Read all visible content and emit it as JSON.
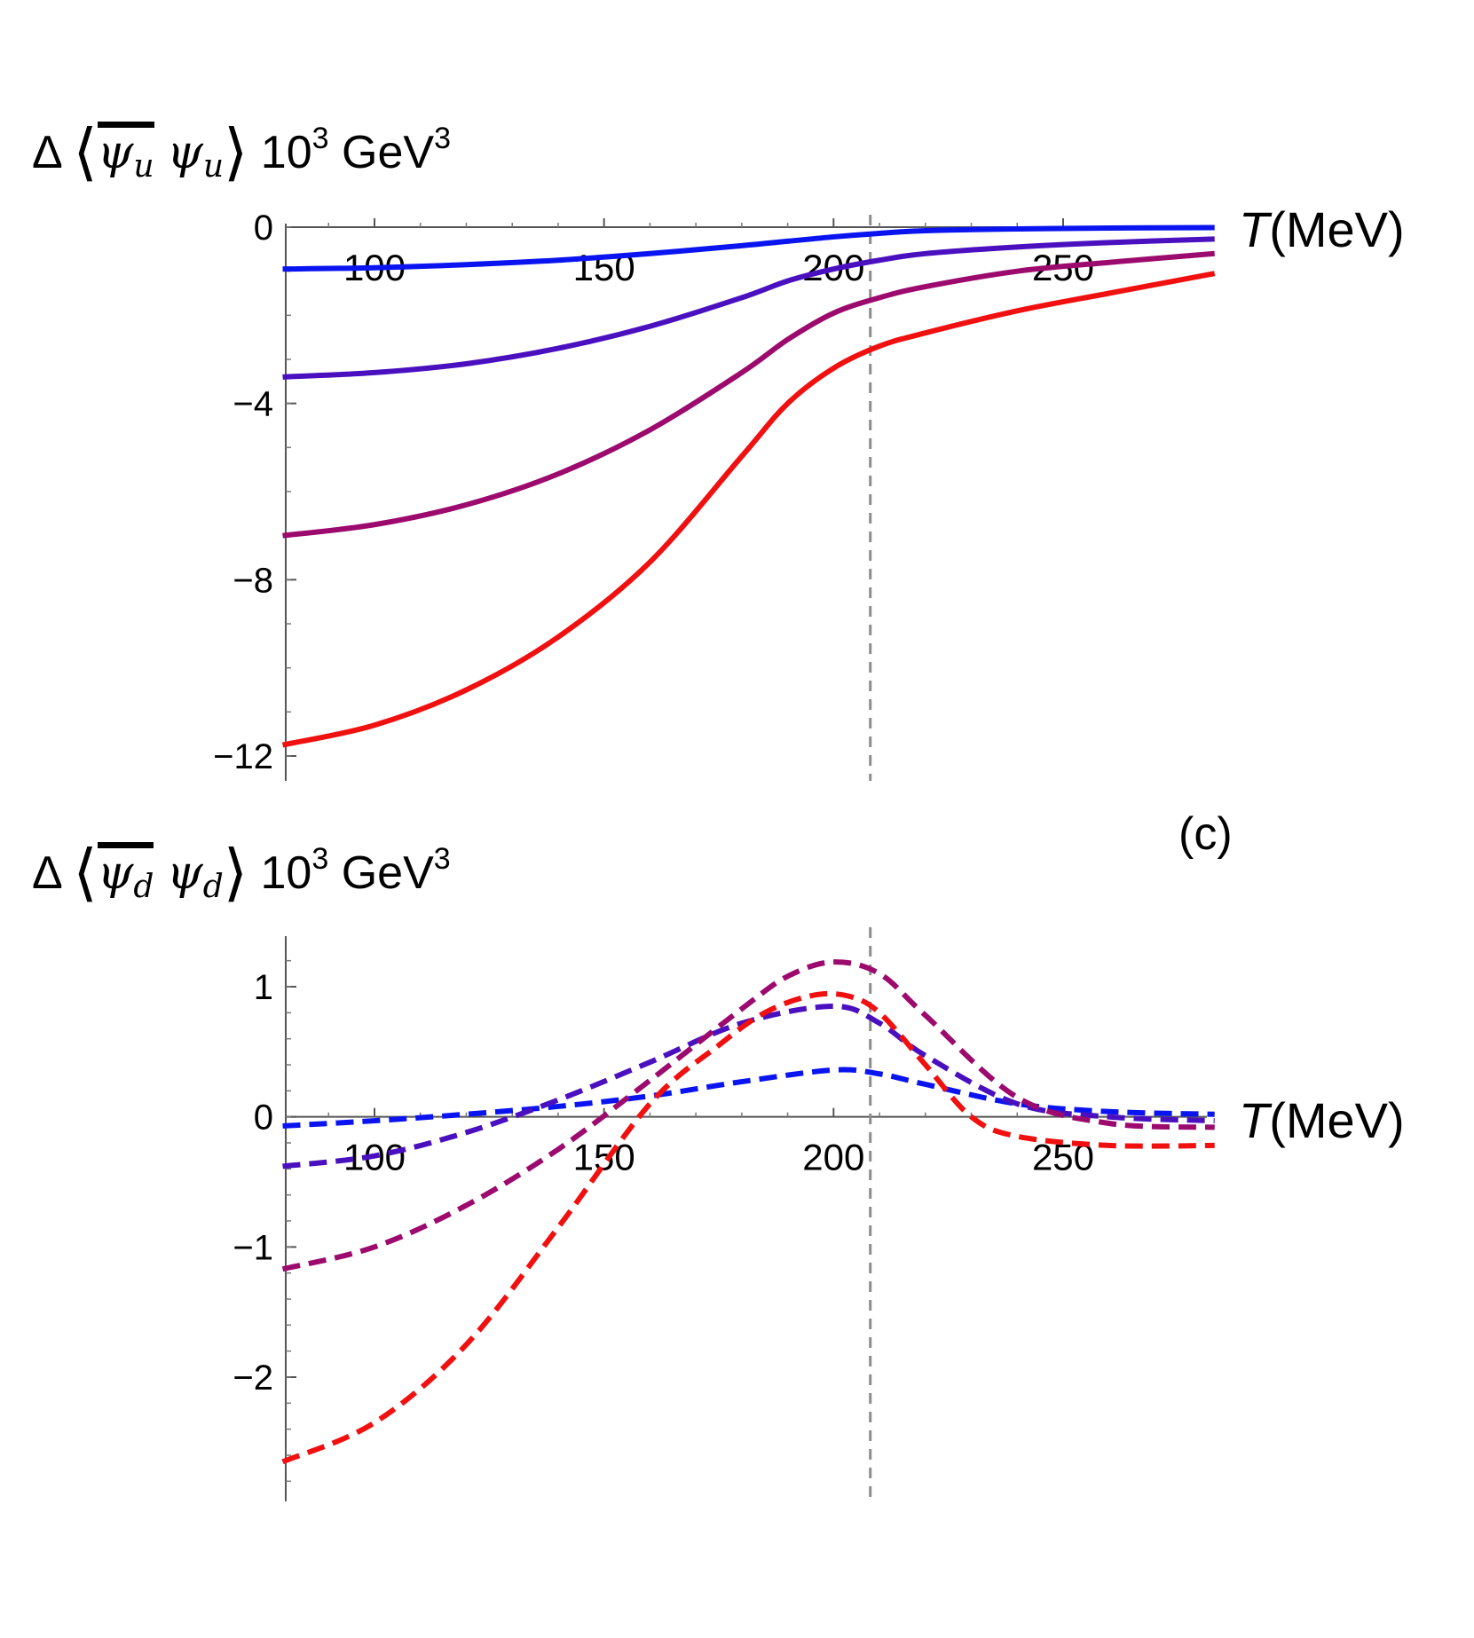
{
  "chart_data": [
    {
      "type": "line",
      "panel": "top",
      "ylabel": {
        "prefix": "Δ",
        "sub": "u",
        "power_ten": "10",
        "power_ten_exp": "3",
        "unit": "GeV",
        "unit_exp": "3"
      },
      "xlabel": {
        "symbol": "T",
        "unit": "(MeV)"
      },
      "xlim": [
        80,
        283
      ],
      "ylim": [
        -12.5,
        0.2
      ],
      "x_ticks": [
        100,
        150,
        200,
        250
      ],
      "y_ticks": [
        0,
        -4,
        -8,
        -12
      ],
      "x_tick_labels": [
        "100",
        "150",
        "200",
        "250"
      ],
      "y_tick_labels": [
        "0",
        "−4",
        "−8",
        "−12"
      ],
      "reference_line_x": 208,
      "line_style": "solid",
      "series": [
        {
          "name": "blue",
          "color": "#0a14f0",
          "x": [
            80,
            100,
            120,
            140,
            160,
            180,
            190,
            200,
            210,
            220,
            240,
            260,
            283
          ],
          "y": [
            -0.95,
            -0.92,
            -0.85,
            -0.75,
            -0.6,
            -0.42,
            -0.32,
            -0.22,
            -0.14,
            -0.08,
            -0.04,
            -0.02,
            -0.01
          ]
        },
        {
          "name": "indigo",
          "color": "#4a10c0",
          "x": [
            80,
            100,
            120,
            140,
            160,
            180,
            190,
            200,
            210,
            220,
            240,
            260,
            283
          ],
          "y": [
            -3.4,
            -3.3,
            -3.1,
            -2.75,
            -2.25,
            -1.6,
            -1.22,
            -0.95,
            -0.75,
            -0.6,
            -0.45,
            -0.35,
            -0.27
          ]
        },
        {
          "name": "magenta",
          "color": "#9c0a6e",
          "x": [
            80,
            100,
            120,
            140,
            160,
            180,
            190,
            200,
            210,
            220,
            240,
            260,
            283
          ],
          "y": [
            -7.0,
            -6.75,
            -6.3,
            -5.6,
            -4.6,
            -3.3,
            -2.55,
            -1.95,
            -1.6,
            -1.35,
            -1.0,
            -0.8,
            -0.6
          ]
        },
        {
          "name": "red",
          "color": "#f01010",
          "x": [
            80,
            100,
            120,
            140,
            160,
            180,
            190,
            200,
            210,
            220,
            240,
            260,
            283
          ],
          "y": [
            -11.75,
            -11.3,
            -10.5,
            -9.3,
            -7.6,
            -5.2,
            -4.0,
            -3.2,
            -2.7,
            -2.4,
            -1.9,
            -1.5,
            -1.05
          ]
        }
      ]
    },
    {
      "type": "line",
      "panel": "bottom",
      "panel_label": "(c)",
      "ylabel": {
        "prefix": "Δ",
        "sub": "d",
        "power_ten": "10",
        "power_ten_exp": "3",
        "unit": "GeV",
        "unit_exp": "3"
      },
      "xlabel": {
        "symbol": "T",
        "unit": "(MeV)"
      },
      "xlim": [
        80,
        283
      ],
      "ylim": [
        -2.95,
        1.4
      ],
      "x_ticks": [
        100,
        150,
        200,
        250
      ],
      "y_ticks": [
        1,
        0,
        -1,
        -2
      ],
      "x_tick_labels": [
        "100",
        "150",
        "200",
        "250"
      ],
      "y_tick_labels": [
        "1",
        "0",
        "−1",
        "−2"
      ],
      "reference_line_x": 208,
      "line_style": "dashed",
      "series": [
        {
          "name": "blue",
          "color": "#0a14f0",
          "x": [
            80,
            100,
            120,
            140,
            160,
            180,
            200,
            210,
            220,
            240,
            260,
            283
          ],
          "y": [
            -0.07,
            -0.03,
            0.02,
            0.08,
            0.16,
            0.27,
            0.36,
            0.33,
            0.25,
            0.1,
            0.04,
            0.02
          ]
        },
        {
          "name": "indigo",
          "color": "#4a10c0",
          "x": [
            80,
            100,
            120,
            140,
            160,
            180,
            200,
            210,
            220,
            240,
            260,
            283
          ],
          "y": [
            -0.38,
            -0.3,
            -0.12,
            0.13,
            0.42,
            0.72,
            0.85,
            0.72,
            0.47,
            0.1,
            0.0,
            -0.03
          ]
        },
        {
          "name": "magenta",
          "color": "#9c0a6e",
          "x": [
            80,
            100,
            120,
            140,
            160,
            180,
            190,
            200,
            210,
            220,
            240,
            260,
            283
          ],
          "y": [
            -1.17,
            -1.0,
            -0.68,
            -0.25,
            0.28,
            0.83,
            1.08,
            1.19,
            1.1,
            0.78,
            0.15,
            -0.05,
            -0.08
          ]
        },
        {
          "name": "red",
          "color": "#f01010",
          "x": [
            80,
            100,
            120,
            140,
            160,
            175,
            185,
            195,
            203,
            210,
            220,
            230,
            240,
            260,
            283
          ],
          "y": [
            -2.65,
            -2.35,
            -1.75,
            -0.85,
            0.1,
            0.55,
            0.8,
            0.93,
            0.93,
            0.8,
            0.4,
            0.0,
            -0.15,
            -0.22,
            -0.22
          ]
        }
      ]
    }
  ]
}
